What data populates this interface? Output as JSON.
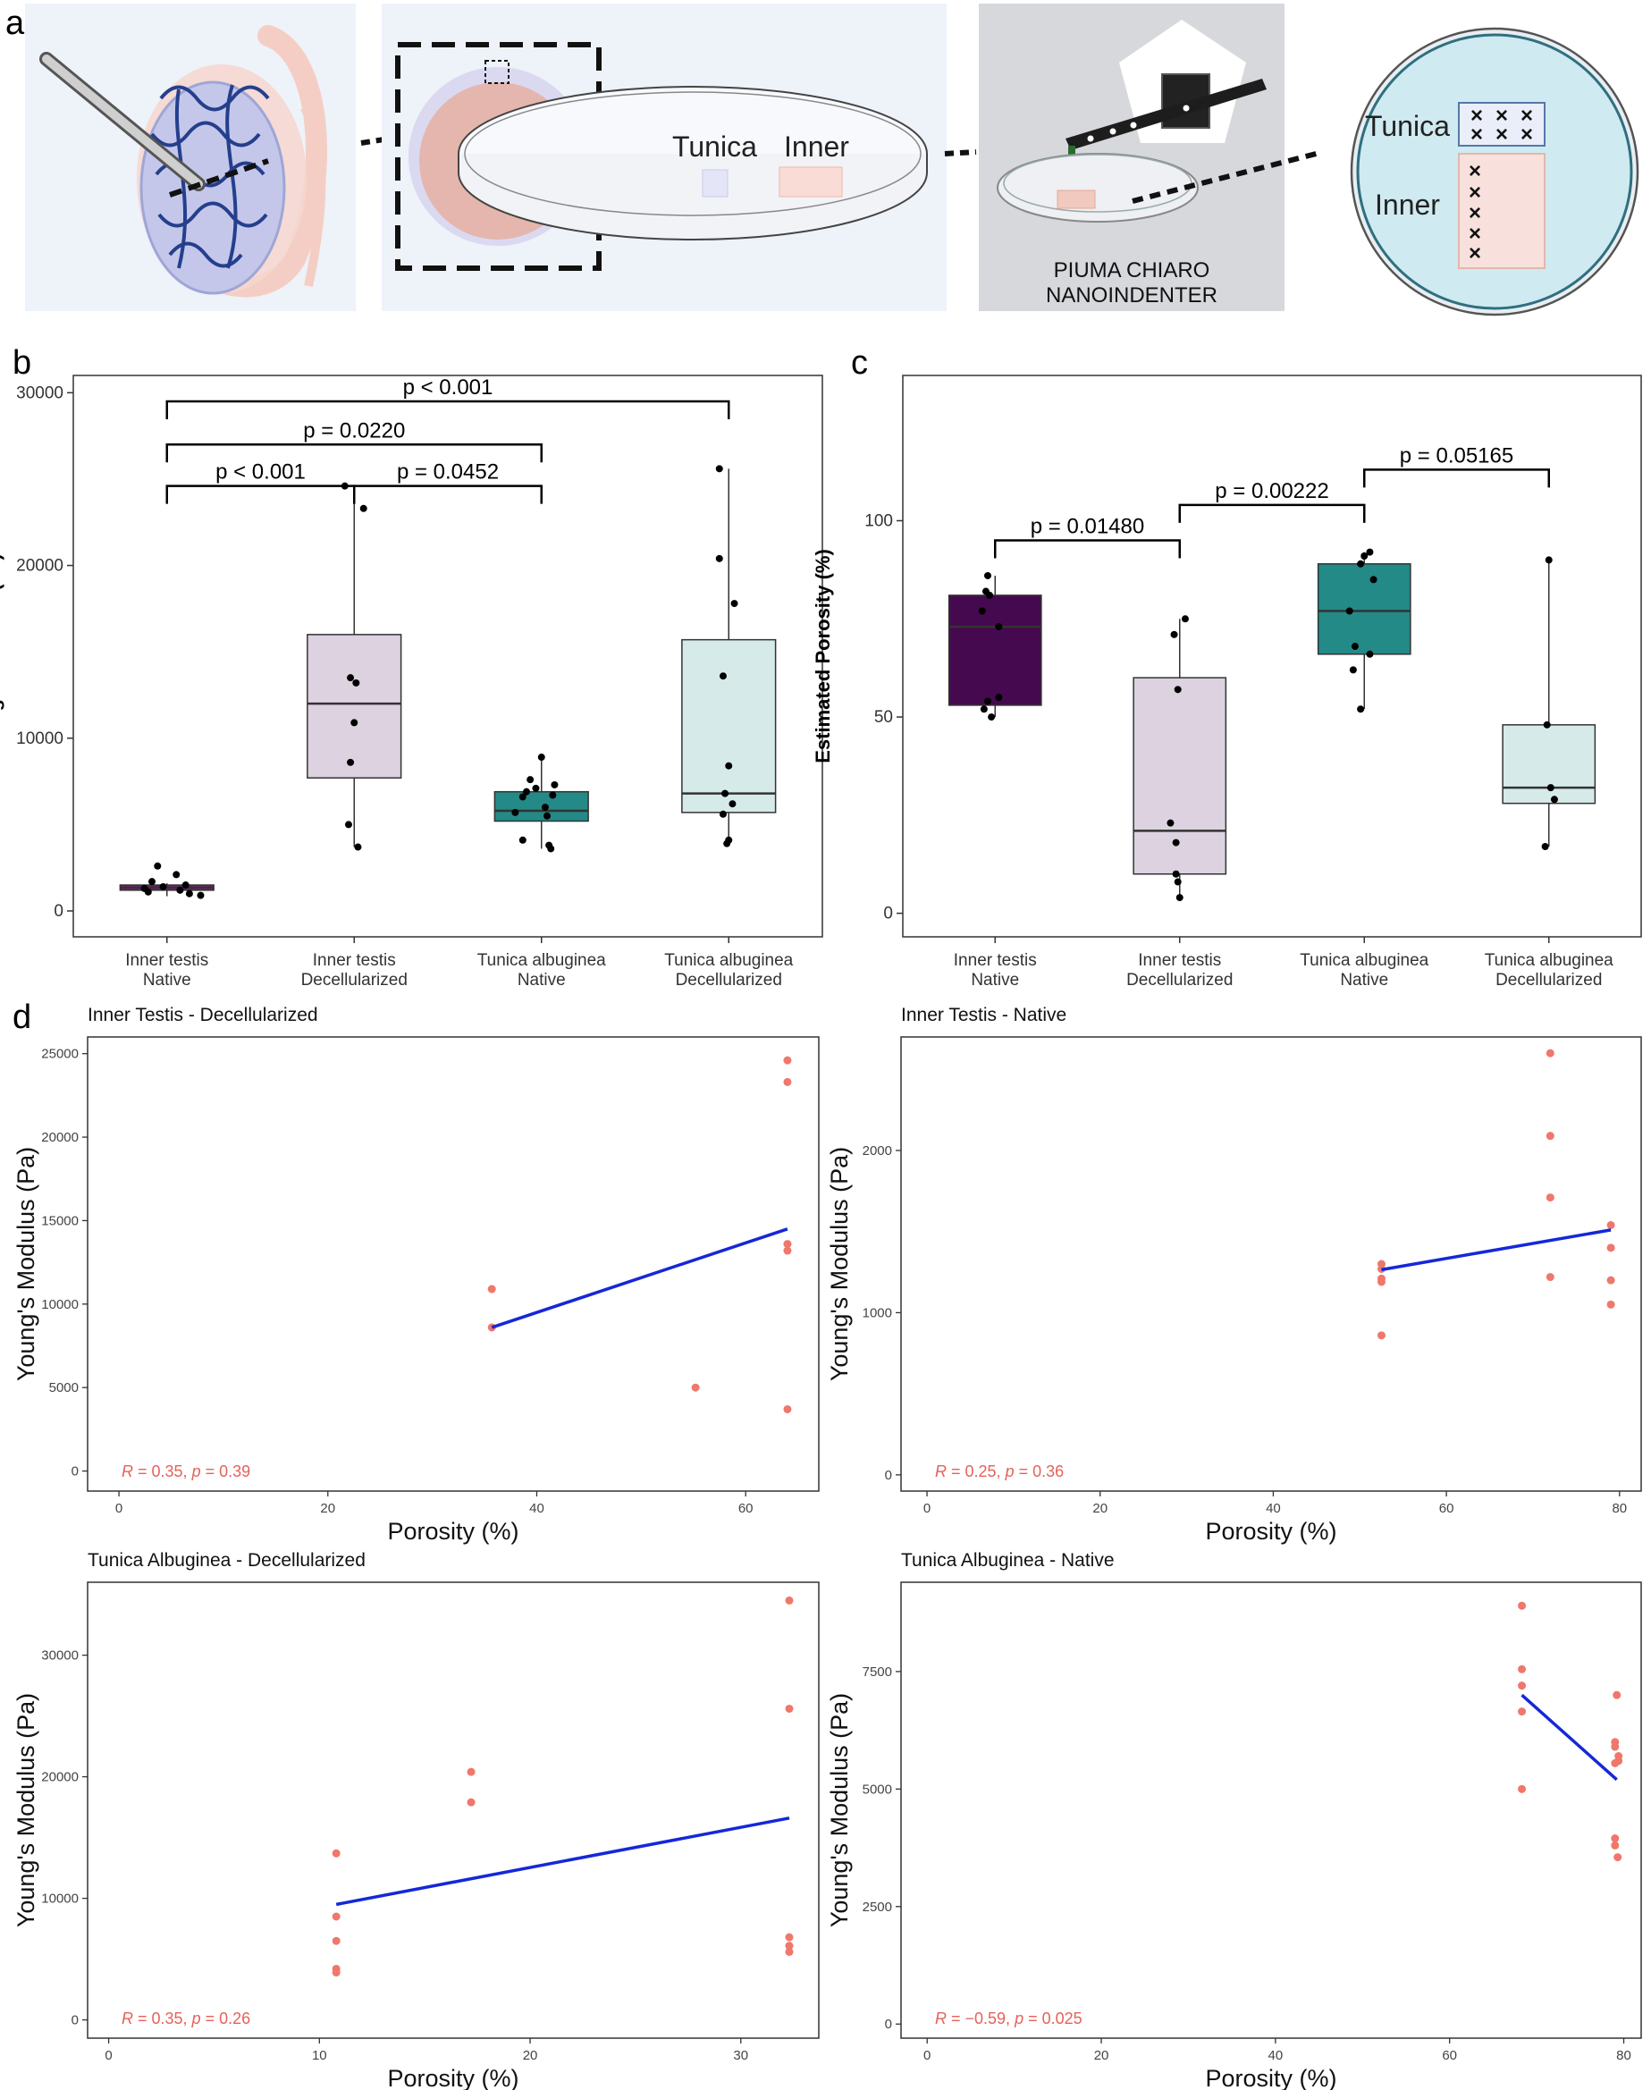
{
  "panel_labels": {
    "a": "a",
    "b": "b",
    "c": "c",
    "d": "d"
  },
  "schematic": {
    "tunica_label": "Tunica",
    "inner_label": "Inner",
    "instrument_line1": "PIUMA CHIARO",
    "instrument_line2": "NANOINDENTER",
    "tunica_dish_label": "Tunica",
    "inner_dish_label": "Inner"
  },
  "chart_data": [
    {
      "id": "b",
      "type": "box",
      "ylabel": "Young's modulus (Pa)",
      "ylim": [
        -1500,
        31000
      ],
      "yticks": [
        0,
        10000,
        20000,
        30000
      ],
      "categories": [
        "Inner testis|Native",
        "Inner testis|Decellularized",
        "Tunica albuginea|Native",
        "Tunica albuginea|Decellularized"
      ],
      "colors": [
        "#7a1f78",
        "#dcd2e0",
        "#238a88",
        "#d6ebe9"
      ],
      "boxes": [
        {
          "q1": 1200,
          "median": 1350,
          "q3": 1500,
          "whisker_low": 850,
          "whisker_high": 1600
        },
        {
          "q1": 7700,
          "median": 12000,
          "q3": 16000,
          "whisker_low": 3700,
          "whisker_high": 24600
        },
        {
          "q1": 5200,
          "median": 5800,
          "q3": 6900,
          "whisker_low": 3600,
          "whisker_high": 8900
        },
        {
          "q1": 5700,
          "median": 6800,
          "q3": 15700,
          "whisker_low": 3900,
          "whisker_high": 25600
        }
      ],
      "points": [
        [
          [
            -0.05,
            2600
          ],
          [
            0.05,
            2100
          ],
          [
            -0.08,
            1700
          ],
          [
            0.1,
            1500
          ],
          [
            -0.02,
            1400
          ],
          [
            0.07,
            1200
          ],
          [
            -0.1,
            1100
          ],
          [
            0.18,
            900
          ],
          [
            -0.12,
            1300
          ],
          [
            0.12,
            1000
          ]
        ],
        [
          [
            -0.05,
            24600
          ],
          [
            0.05,
            23300
          ],
          [
            -0.02,
            13500
          ],
          [
            0.01,
            13200
          ],
          [
            0.0,
            10900
          ],
          [
            -0.02,
            8600
          ],
          [
            -0.03,
            5000
          ],
          [
            0.02,
            3700
          ]
        ],
        [
          [
            0.0,
            8900
          ],
          [
            -0.06,
            7600
          ],
          [
            0.07,
            7300
          ],
          [
            -0.03,
            7100
          ],
          [
            -0.08,
            6900
          ],
          [
            0.06,
            6700
          ],
          [
            -0.1,
            6600
          ],
          [
            0.02,
            6000
          ],
          [
            -0.14,
            5700
          ],
          [
            0.03,
            5500
          ],
          [
            -0.1,
            4100
          ],
          [
            0.04,
            3800
          ],
          [
            0.05,
            3600
          ]
        ],
        [
          [
            -0.05,
            25600
          ],
          [
            0.03,
            17800
          ],
          [
            -0.05,
            20400
          ],
          [
            -0.03,
            13600
          ],
          [
            0.0,
            8400
          ],
          [
            -0.02,
            6800
          ],
          [
            0.02,
            6200
          ],
          [
            -0.03,
            5600
          ],
          [
            0.0,
            4100
          ],
          [
            -0.01,
            3900
          ]
        ]
      ],
      "brackets": [
        {
          "from": 0,
          "to": 3,
          "label": "p < 0.001",
          "y": 29500
        },
        {
          "from": 0,
          "to": 2,
          "label": "p = 0.0220",
          "y": 27000
        },
        {
          "from": 0,
          "to": 1,
          "label": "p < 0.001",
          "y": 24600
        },
        {
          "from": 1,
          "to": 2,
          "label": "p = 0.0452",
          "y": 24600
        }
      ]
    },
    {
      "id": "c",
      "type": "box",
      "ylabel": "Estimated Porosity (%)",
      "ylim": [
        -6,
        137
      ],
      "yticks": [
        0,
        50,
        100
      ],
      "categories": [
        "Inner testis|Native",
        "Inner testis|Decellularized",
        "Tunica albuginea|Native",
        "Tunica albuginea|Decellularized"
      ],
      "colors": [
        "#45094f",
        "#dcd2e0",
        "#238a88",
        "#d6ebe9"
      ],
      "boxes": [
        {
          "q1": 53,
          "median": 73,
          "q3": 81,
          "whisker_low": 50,
          "whisker_high": 86
        },
        {
          "q1": 10,
          "median": 21,
          "q3": 60,
          "whisker_low": 4,
          "whisker_high": 75
        },
        {
          "q1": 66,
          "median": 77,
          "q3": 89,
          "whisker_low": 52,
          "whisker_high": 92
        },
        {
          "q1": 28,
          "median": 32,
          "q3": 48,
          "whisker_low": 17,
          "whisker_high": 90
        }
      ],
      "points": [
        [
          [
            -0.04,
            86
          ],
          [
            -0.05,
            82
          ],
          [
            -0.03,
            81
          ],
          [
            -0.07,
            77
          ],
          [
            0.02,
            73
          ],
          [
            0.02,
            55
          ],
          [
            -0.04,
            54
          ],
          [
            -0.06,
            52
          ],
          [
            -0.02,
            50
          ]
        ],
        [
          [
            0.03,
            75
          ],
          [
            -0.03,
            71
          ],
          [
            -0.01,
            57
          ],
          [
            -0.05,
            23
          ],
          [
            -0.02,
            18
          ],
          [
            -0.02,
            10
          ],
          [
            -0.01,
            8
          ],
          [
            0.0,
            4
          ]
        ],
        [
          [
            0.03,
            92
          ],
          [
            0.0,
            91
          ],
          [
            -0.02,
            89
          ],
          [
            0.05,
            85
          ],
          [
            -0.08,
            77
          ],
          [
            -0.05,
            68
          ],
          [
            0.03,
            66
          ],
          [
            -0.06,
            62
          ],
          [
            -0.02,
            52
          ]
        ],
        [
          [
            0.0,
            90
          ],
          [
            -0.01,
            48
          ],
          [
            0.01,
            32
          ],
          [
            0.03,
            29
          ],
          [
            -0.02,
            17
          ]
        ]
      ],
      "brackets": [
        {
          "from": 0,
          "to": 1,
          "label": "p = 0.01480",
          "y": 95
        },
        {
          "from": 1,
          "to": 2,
          "label": "p = 0.00222",
          "y": 104
        },
        {
          "from": 2,
          "to": 3,
          "label": "p = 0.05165",
          "y": 113
        }
      ]
    },
    {
      "id": "d1",
      "type": "scatter",
      "title": "Inner Testis - Decellularized",
      "xlabel": "Porosity (%)",
      "ylabel": "Young's Modulus (Pa)",
      "xlim": [
        -3,
        67
      ],
      "ylim": [
        -1200,
        26000
      ],
      "xticks": [
        0,
        20,
        40,
        60
      ],
      "yticks": [
        0,
        5000,
        10000,
        15000,
        20000,
        25000
      ],
      "points": [
        [
          35.7,
          10900
        ],
        [
          35.7,
          8600
        ],
        [
          55.2,
          5000
        ],
        [
          64.0,
          24600
        ],
        [
          64.0,
          23300
        ],
        [
          64.0,
          13600
        ],
        [
          64.0,
          13200
        ],
        [
          64.0,
          3700
        ]
      ],
      "fit": {
        "x": [
          35.7,
          64.0
        ],
        "y": [
          8600,
          14500
        ]
      },
      "annotation": {
        "R": "0.35",
        "p": "0.39"
      }
    },
    {
      "id": "d2",
      "type": "scatter",
      "title": "Inner Testis - Native",
      "xlabel": "Porosity (%)",
      "ylabel": "Young's Modulus (Pa)",
      "xlim": [
        -3,
        82.5
      ],
      "ylim": [
        -100,
        2700
      ],
      "xticks": [
        0,
        20,
        40,
        60,
        80
      ],
      "yticks": [
        0,
        1000,
        2000
      ],
      "points": [
        [
          52.5,
          1300
        ],
        [
          52.5,
          1270
        ],
        [
          52.5,
          1210
        ],
        [
          52.5,
          1190
        ],
        [
          52.5,
          860
        ],
        [
          72.0,
          2600
        ],
        [
          72.0,
          2090
        ],
        [
          72.0,
          1710
        ],
        [
          72.0,
          1220
        ],
        [
          79.0,
          1540
        ],
        [
          79.0,
          1400
        ],
        [
          79.0,
          1200
        ],
        [
          79.0,
          1050
        ]
      ],
      "fit": {
        "x": [
          52.5,
          79.0
        ],
        "y": [
          1265,
          1510
        ]
      },
      "annotation": {
        "R": "0.25",
        "p": "0.36"
      }
    },
    {
      "id": "d3",
      "type": "scatter",
      "title": "Tunica Albuginea - Decellularized",
      "xlabel": "Porosity (%)",
      "ylabel": "Young's Modulus (Pa)",
      "xlim": [
        -1,
        33.7
      ],
      "ylim": [
        -1500,
        36000
      ],
      "xticks": [
        0,
        10,
        20,
        30
      ],
      "yticks": [
        0,
        10000,
        20000,
        30000
      ],
      "points": [
        [
          10.8,
          13700
        ],
        [
          10.8,
          8500
        ],
        [
          10.8,
          6500
        ],
        [
          10.8,
          4200
        ],
        [
          10.8,
          3900
        ],
        [
          17.2,
          20400
        ],
        [
          17.2,
          17900
        ],
        [
          32.3,
          34500
        ],
        [
          32.3,
          25600
        ],
        [
          32.3,
          6800
        ],
        [
          32.3,
          6100
        ],
        [
          32.3,
          5600
        ]
      ],
      "fit": {
        "x": [
          10.8,
          32.3
        ],
        "y": [
          9500,
          16600
        ]
      },
      "annotation": {
        "R": "0.35",
        "p": "0.26"
      }
    },
    {
      "id": "d4",
      "type": "scatter",
      "title": "Tunica Albuginea - Native",
      "xlabel": "Porosity (%)",
      "ylabel": "Young's Modulus (Pa)",
      "xlim": [
        -3,
        82
      ],
      "ylim": [
        -300,
        9400
      ],
      "xticks": [
        0,
        20,
        40,
        60,
        80
      ],
      "yticks": [
        0,
        2500,
        5000,
        7500
      ],
      "points": [
        [
          68.3,
          8900
        ],
        [
          68.3,
          7550
        ],
        [
          68.3,
          7200
        ],
        [
          68.3,
          6650
        ],
        [
          68.3,
          5000
        ],
        [
          79.2,
          7000
        ],
        [
          79.0,
          6000
        ],
        [
          79.0,
          5900
        ],
        [
          79.4,
          5700
        ],
        [
          79.4,
          5600
        ],
        [
          79.0,
          5550
        ],
        [
          79.0,
          3950
        ],
        [
          79.0,
          3800
        ],
        [
          79.3,
          3550
        ]
      ],
      "fit": {
        "x": [
          68.3,
          79.2
        ],
        "y": [
          7000,
          5200
        ]
      },
      "annotation": {
        "R": "−0.59",
        "p": "0.025"
      }
    }
  ]
}
